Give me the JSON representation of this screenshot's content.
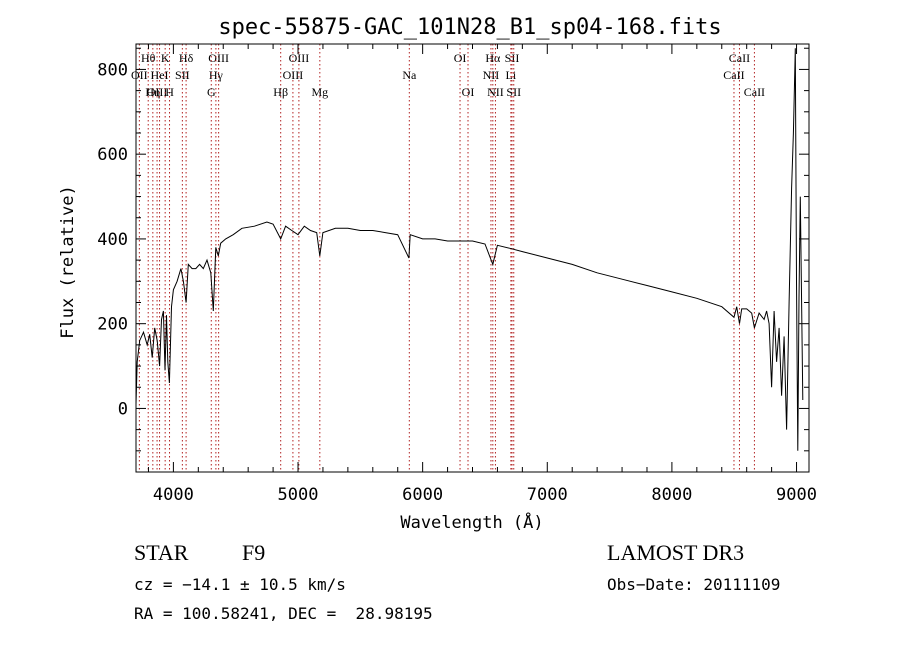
{
  "chart_data": {
    "type": "line",
    "title": "spec-55875-GAC_101N28_B1_sp04-168.fits",
    "xlabel": "Wavelength (Å)",
    "ylabel": "Flux (relative)",
    "xlim": [
      3700,
      9100
    ],
    "ylim": [
      -150,
      860
    ],
    "xticks": [
      4000,
      5000,
      6000,
      7000,
      8000,
      9000
    ],
    "xtick_labels": [
      "4000",
      "5000",
      "6000",
      "7000",
      "8000",
      "9000"
    ],
    "yticks": [
      0,
      200,
      400,
      600,
      800
    ],
    "ytick_labels": [
      "0",
      "200",
      "400",
      "600",
      "800"
    ],
    "grid": false,
    "series": [
      {
        "name": "flux",
        "x": [
          3700,
          3710,
          3730,
          3760,
          3790,
          3810,
          3830,
          3850,
          3870,
          3889,
          3905,
          3920,
          3933,
          3945,
          3955,
          3968,
          3985,
          4000,
          4030,
          4060,
          4080,
          4102,
          4120,
          4150,
          4180,
          4210,
          4240,
          4270,
          4300,
          4320,
          4340,
          4360,
          4380,
          4420,
          4480,
          4550,
          4650,
          4750,
          4800,
          4861,
          4900,
          4950,
          5000,
          5050,
          5100,
          5150,
          5175,
          5200,
          5300,
          5400,
          5500,
          5600,
          5700,
          5800,
          5890,
          5900,
          6000,
          6100,
          6200,
          6300,
          6400,
          6500,
          6563,
          6600,
          6700,
          6800,
          7000,
          7200,
          7400,
          7600,
          7800,
          8000,
          8200,
          8400,
          8498,
          8520,
          8542,
          8560,
          8600,
          8640,
          8662,
          8700,
          8740,
          8760,
          8780,
          8800,
          8820,
          8840,
          8860,
          8880,
          8900,
          8920,
          8940,
          8960,
          8975,
          8990,
          9000,
          9010,
          9020,
          9030,
          9050
        ],
        "y": [
          10,
          110,
          160,
          180,
          150,
          175,
          120,
          190,
          160,
          100,
          210,
          230,
          90,
          220,
          110,
          60,
          240,
          280,
          300,
          330,
          300,
          250,
          340,
          330,
          330,
          340,
          330,
          350,
          320,
          230,
          380,
          360,
          390,
          400,
          410,
          425,
          430,
          440,
          435,
          400,
          430,
          420,
          410,
          430,
          420,
          415,
          360,
          415,
          425,
          425,
          420,
          420,
          415,
          410,
          355,
          410,
          400,
          400,
          395,
          395,
          395,
          388,
          340,
          385,
          378,
          370,
          355,
          340,
          320,
          305,
          290,
          275,
          260,
          240,
          215,
          240,
          200,
          235,
          235,
          225,
          190,
          225,
          210,
          230,
          200,
          50,
          230,
          110,
          190,
          30,
          170,
          -50,
          250,
          520,
          650,
          850,
          300,
          -100,
          260,
          500,
          20
        ]
      }
    ],
    "line_marks": [
      {
        "label": "Hθ",
        "x": 3798,
        "row": 0
      },
      {
        "label": "OII",
        "x": 3727,
        "row": 1
      },
      {
        "label": "OIII",
        "x": 3869,
        "row": 2
      },
      {
        "label": "Hη",
        "x": 3835,
        "row": 2
      },
      {
        "label": "K",
        "x": 3934,
        "row": 0
      },
      {
        "label": "HeI",
        "x": 3889,
        "row": 1
      },
      {
        "label": "H",
        "x": 3969,
        "row": 2
      },
      {
        "label": "Hδ",
        "x": 4102,
        "row": 0
      },
      {
        "label": "SII",
        "x": 4072,
        "row": 1
      },
      {
        "label": "OIII",
        "x": 4363,
        "row": 0
      },
      {
        "label": "Hγ",
        "x": 4341,
        "row": 1
      },
      {
        "label": "G",
        "x": 4304,
        "row": 2
      },
      {
        "label": "Hβ",
        "x": 4861,
        "row": 2
      },
      {
        "label": "OIII",
        "x": 5007,
        "row": 0
      },
      {
        "label": "OIII",
        "x": 4959,
        "row": 1
      },
      {
        "label": "Mg",
        "x": 5175,
        "row": 2
      },
      {
        "label": "Na",
        "x": 5893,
        "row": 1
      },
      {
        "label": "OI",
        "x": 6300,
        "row": 0
      },
      {
        "label": "OI",
        "x": 6364,
        "row": 2
      },
      {
        "label": "Hα",
        "x": 6563,
        "row": 0
      },
      {
        "label": "NII",
        "x": 6548,
        "row": 1
      },
      {
        "label": "NII",
        "x": 6584,
        "row": 2
      },
      {
        "label": "SII",
        "x": 6717,
        "row": 0
      },
      {
        "label": "Li",
        "x": 6708,
        "row": 1
      },
      {
        "label": "SII",
        "x": 6731,
        "row": 2
      },
      {
        "label": "CaII",
        "x": 8542,
        "row": 0
      },
      {
        "label": "CaII",
        "x": 8498,
        "row": 1
      },
      {
        "label": "CaII",
        "x": 8662,
        "row": 2
      }
    ]
  },
  "info": {
    "object_type": "STAR",
    "subclass": "F9",
    "survey": "LAMOST DR3",
    "redshift": "cz = −14.1 ± 10.5 km/s",
    "obs_date": "Obs−Date: 20111109",
    "coords": "RA = 100.58241, DEC =  28.98195"
  }
}
